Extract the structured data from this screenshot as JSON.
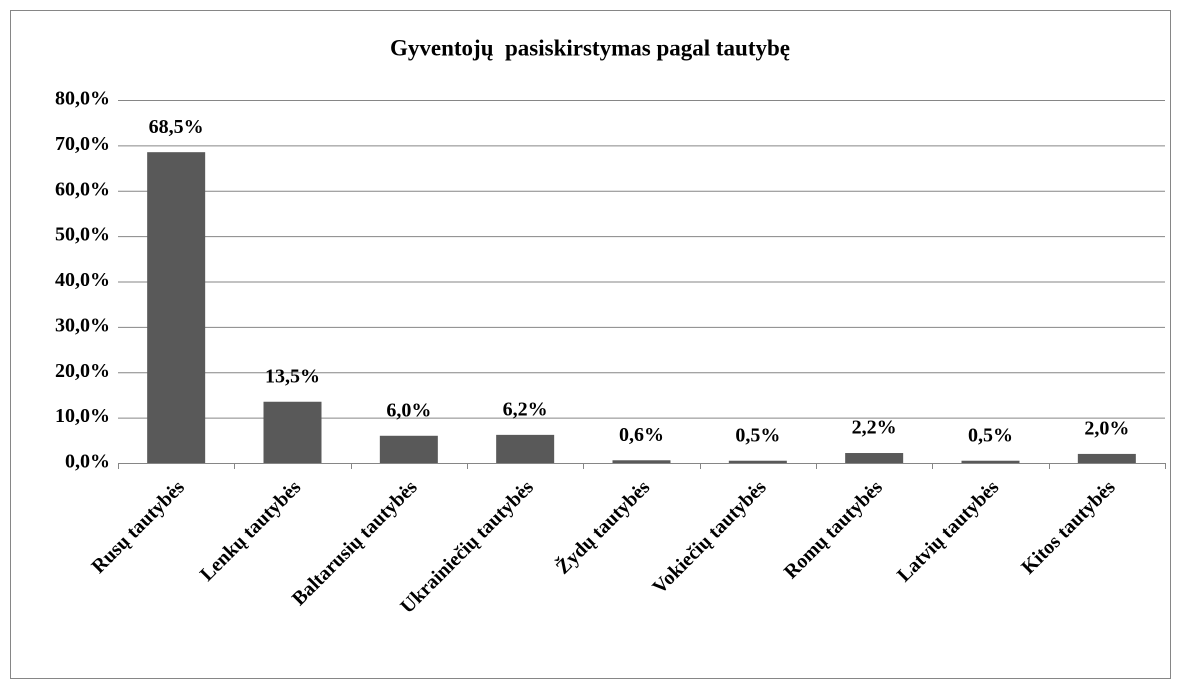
{
  "chart_data": {
    "type": "bar",
    "title": "Gyventojų  pasiskirstymas pagal tautybę",
    "categories": [
      "Rusų tautybės",
      "Lenkų tautybės",
      "Baltarusių tautybės",
      "Ukrainiečių tautybės",
      "Žydų tautybės",
      "Vokiečių tautybės",
      "Romų tautybės",
      "Latvių tautybės",
      "Kitos tautybės"
    ],
    "values": [
      68.5,
      13.5,
      6.0,
      6.2,
      0.6,
      0.5,
      2.2,
      0.5,
      2.0
    ],
    "value_labels": [
      "68,5%",
      "13,5%",
      "6,0%",
      "6,2%",
      "0,6%",
      "0,5%",
      "2,2%",
      "0,5%",
      "2,0%"
    ],
    "color": "#595959",
    "ylim": [
      0,
      80
    ],
    "yticks": [
      {
        "value": 0,
        "label": "0,0%"
      },
      {
        "value": 10,
        "label": "10,0%"
      },
      {
        "value": 20,
        "label": "20,0%"
      },
      {
        "value": 30,
        "label": "30,0%"
      },
      {
        "value": 40,
        "label": "40,0%"
      },
      {
        "value": 50,
        "label": "50,0%"
      },
      {
        "value": 60,
        "label": "60,0%"
      },
      {
        "value": 70,
        "label": "70,0%"
      },
      {
        "value": 80,
        "label": "80,0%"
      }
    ],
    "grid": true
  }
}
